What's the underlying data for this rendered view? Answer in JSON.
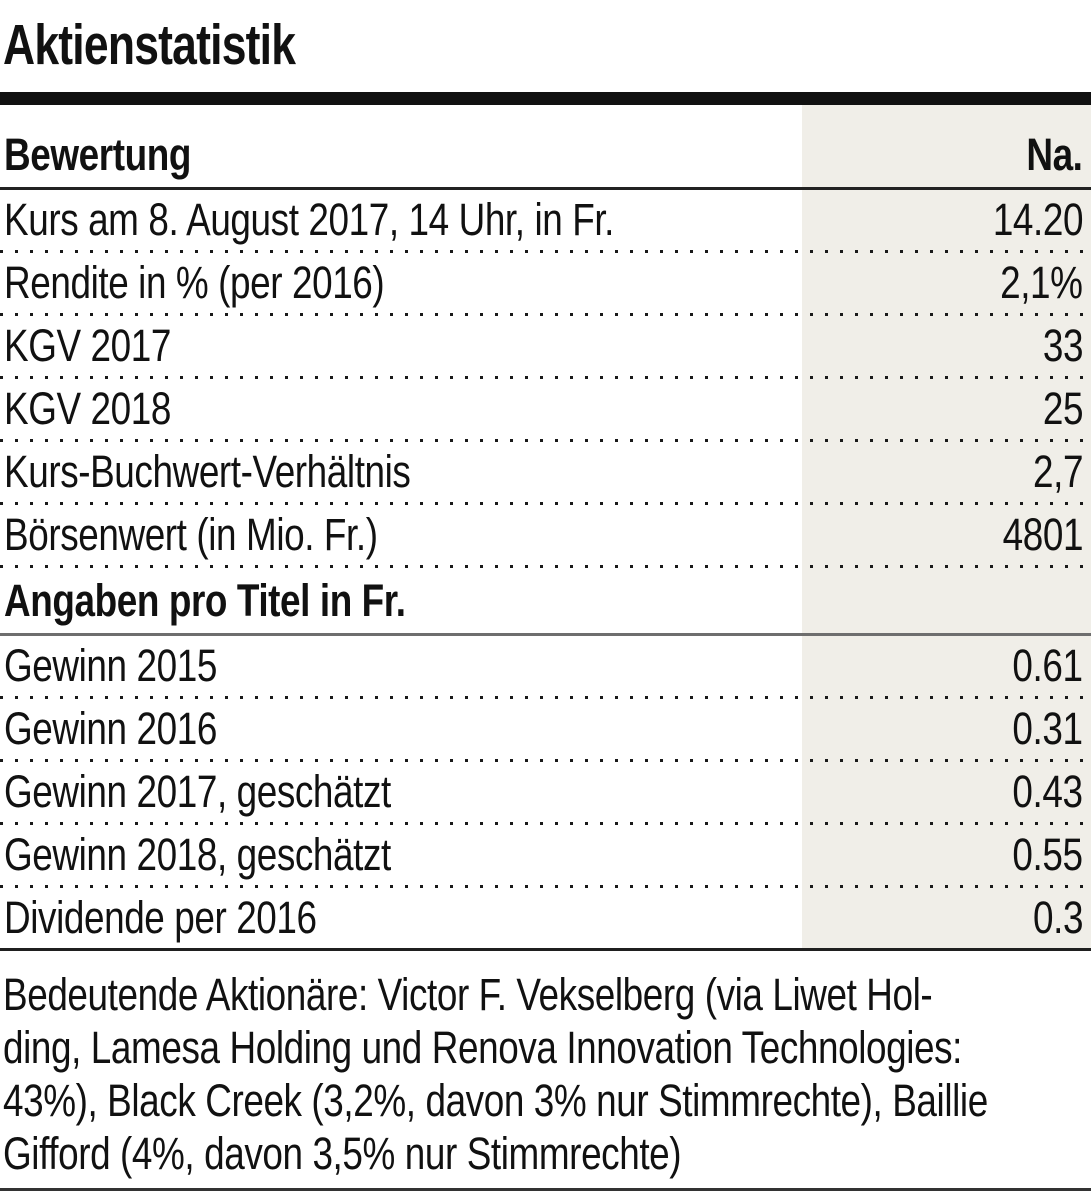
{
  "title": "Aktienstatistik",
  "table": {
    "header": {
      "label": "Bewertung",
      "value": "Na."
    },
    "rows": [
      {
        "label": "Kurs am 8. August 2017, 14 Uhr, in Fr.",
        "value": "14.20"
      },
      {
        "label": "Rendite in % (per 2016)",
        "value": "2,1%"
      },
      {
        "label": "KGV 2017",
        "value": "33"
      },
      {
        "label": "KGV 2018",
        "value": "25"
      },
      {
        "label": "Kurs-Buchwert-Verhältnis",
        "value": "2,7"
      },
      {
        "label": "Börsenwert (in Mio. Fr.)",
        "value": "4801"
      }
    ],
    "section2_header": "Angaben pro Titel in Fr.",
    "rows2": [
      {
        "label": "Gewinn 2015",
        "value": "0.61"
      },
      {
        "label": "Gewinn 2016",
        "value": "0.31"
      },
      {
        "label": "Gewinn 2017, geschätzt",
        "value": "0.43"
      },
      {
        "label": "Gewinn 2018, geschätzt",
        "value": "0.55"
      },
      {
        "label": "Dividende per 2016",
        "value": "0.3"
      }
    ]
  },
  "footnote": {
    "lines": [
      "Bedeutende Aktionäre: Victor F. Vekselberg (via Liwet Hol-",
      "ding, Lamesa Holding und Renova Innovation Technologies:",
      "43%), Black Creek (3,2%, davon 3% nur Stimmrechte), Baillie",
      "Gifford (4%, davon 3,5% nur Stimmrechte)"
    ]
  },
  "colors": {
    "value_column_shade": "#f0eee8",
    "rule_black": "#111111",
    "section_rule_gray": "#6e6e6e",
    "text": "#111111"
  },
  "chart_data": {
    "type": "table",
    "title": "Aktienstatistik",
    "sections": [
      {
        "header": "Bewertung",
        "value_column_header": "Na.",
        "rows": [
          [
            "Kurs am 8. August 2017, 14 Uhr, in Fr.",
            "14.20"
          ],
          [
            "Rendite in % (per 2016)",
            "2,1%"
          ],
          [
            "KGV 2017",
            "33"
          ],
          [
            "KGV 2018",
            "25"
          ],
          [
            "Kurs-Buchwert-Verhältnis",
            "2,7"
          ],
          [
            "Börsenwert (in Mio. Fr.)",
            "4801"
          ]
        ]
      },
      {
        "header": "Angaben pro Titel in Fr.",
        "rows": [
          [
            "Gewinn 2015",
            "0.61"
          ],
          [
            "Gewinn 2016",
            "0.31"
          ],
          [
            "Gewinn 2017, geschätzt",
            "0.43"
          ],
          [
            "Gewinn 2018, geschätzt",
            "0.55"
          ],
          [
            "Dividende per 2016",
            "0.3"
          ]
        ]
      }
    ],
    "footnote": "Bedeutende Aktionäre: Victor F. Vekselberg (via Liwet Holding, Lamesa Holding und Renova Innovation Technologies: 43%), Black Creek (3,2%, davon 3% nur Stimmrechte), Baillie Gifford (4%, davon 3,5% nur Stimmrechte)"
  }
}
